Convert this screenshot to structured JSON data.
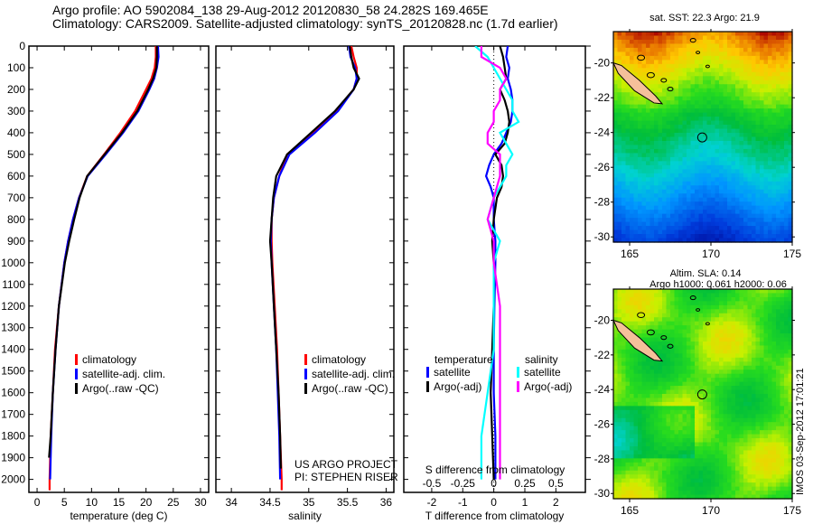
{
  "header": {
    "line1": "Argo profile: AO 5902084_138 29-Aug-2012 20120830_58 24.282S 169.465E",
    "line2": "Climatology: CARS2009. Satellite-adjusted climatology: synTS_20120828.nc (1.7d earlier)"
  },
  "colors": {
    "climatology": "#ff0000",
    "satellite": "#0000ff",
    "argo": "#000000",
    "s_satellite": "#00ffff",
    "s_argo": "#ff00ff",
    "land": "#f5c09a"
  },
  "chart_data": [
    {
      "type": "line",
      "name": "temperature-profile",
      "xlabel": "temperature (deg C)",
      "ylabel": "",
      "xlim": [
        -1.5,
        31.5
      ],
      "ylim": [
        2060,
        0
      ],
      "xticks": [
        "0",
        "5",
        "10",
        "15",
        "20",
        "25",
        "30"
      ],
      "yticks": [
        "0",
        "100",
        "200",
        "300",
        "400",
        "500",
        "600",
        "700",
        "800",
        "900",
        "1000",
        "1100",
        "1200",
        "1300",
        "1400",
        "1500",
        "1600",
        "1700",
        "1800",
        "1900",
        "2000"
      ],
      "legend": [
        "climatology",
        "satellite-adj. clim.",
        "Argo(..raw -QC)"
      ],
      "legend_position": "lower-middle",
      "series": [
        {
          "name": "climatology",
          "depth": [
            0,
            50,
            100,
            150,
            200,
            300,
            400,
            500,
            600,
            700,
            800,
            900,
            1000,
            1200,
            1400,
            1600,
            1800,
            2000,
            2050
          ],
          "values": [
            21.8,
            21.8,
            21.6,
            21.0,
            20.0,
            18.0,
            15.3,
            12.3,
            9.2,
            7.7,
            6.6,
            5.7,
            5.0,
            4.0,
            3.3,
            2.9,
            2.5,
            2.3,
            2.3
          ]
        },
        {
          "name": "satellite-adj. clim.",
          "depth": [
            0,
            50,
            100,
            150,
            200,
            300,
            400,
            500,
            600,
            700,
            800,
            900,
            1000,
            1200,
            1400,
            1600,
            1800,
            2000
          ],
          "values": [
            22.2,
            22.3,
            22.0,
            21.5,
            20.6,
            18.6,
            15.8,
            12.6,
            9.3,
            7.7,
            6.6,
            5.7,
            5.0,
            4.0,
            3.4,
            2.9,
            2.6,
            2.4
          ]
        },
        {
          "name": "Argo(..raw -QC)",
          "depth": [
            0,
            50,
            100,
            150,
            200,
            300,
            400,
            500,
            600,
            700,
            800,
            900,
            1000,
            1200,
            1400,
            1600,
            1800,
            1900
          ],
          "values": [
            22.0,
            22.0,
            21.9,
            21.3,
            20.4,
            18.4,
            15.6,
            12.4,
            9.2,
            7.8,
            6.8,
            5.9,
            5.1,
            4.0,
            3.4,
            2.9,
            2.5,
            2.2
          ]
        }
      ]
    },
    {
      "type": "line",
      "name": "salinity-profile",
      "xlabel": "salinity",
      "xlim": [
        33.8,
        36.1
      ],
      "ylim": [
        2060,
        0
      ],
      "xticks": [
        "34",
        "34.5",
        "35",
        "35.5",
        "36"
      ],
      "legend": [
        "climatology",
        "satellite-adj. clim.",
        "Argo(..raw -QC)"
      ],
      "legend_position": "lower-right",
      "annotation": [
        "US ARGO PROJECT",
        "PI: STEPHEN RISER"
      ],
      "series": [
        {
          "name": "climatology",
          "depth": [
            0,
            50,
            100,
            150,
            200,
            300,
            400,
            500,
            600,
            700,
            800,
            900,
            1000,
            1200,
            1400,
            1600,
            1800,
            2000,
            2050
          ],
          "values": [
            35.55,
            35.58,
            35.62,
            35.62,
            35.58,
            35.35,
            35.05,
            34.72,
            34.62,
            34.55,
            34.52,
            34.52,
            34.53,
            34.56,
            34.59,
            34.61,
            34.63,
            34.65,
            34.65
          ]
        },
        {
          "name": "satellite-adj. clim.",
          "depth": [
            0,
            50,
            100,
            150,
            200,
            300,
            400,
            500,
            600,
            700,
            800,
            900,
            1000,
            1200,
            1400,
            1600,
            1800,
            2000
          ],
          "values": [
            35.52,
            35.54,
            35.6,
            35.62,
            35.58,
            35.38,
            35.08,
            34.75,
            34.62,
            34.55,
            34.52,
            34.51,
            34.52,
            34.55,
            34.58,
            34.6,
            34.62,
            34.63
          ]
        },
        {
          "name": "Argo(..raw -QC)",
          "depth": [
            0,
            50,
            100,
            150,
            200,
            300,
            400,
            500,
            600,
            700,
            800,
            900,
            1000,
            1200,
            1400,
            1600,
            1800,
            1950
          ],
          "values": [
            35.53,
            35.55,
            35.58,
            35.65,
            35.58,
            35.34,
            35.03,
            34.72,
            34.58,
            34.54,
            34.52,
            34.5,
            34.52,
            34.55,
            34.58,
            34.61,
            34.63,
            34.64
          ]
        }
      ]
    },
    {
      "type": "line",
      "name": "difference-profile",
      "xlabel": "T difference from climatology",
      "x2label": "S difference from climatology",
      "xlim": [
        -2.9,
        2.95
      ],
      "ylim": [
        2060,
        0
      ],
      "xticks": [
        "-2",
        "-1",
        "0",
        "1",
        "2"
      ],
      "x2ticks": [
        "-0.5",
        "-0.25",
        "0",
        "0.25",
        "0.5"
      ],
      "legend_temperature": {
        "title": "temperature",
        "items": [
          "satellite",
          "Argo(-adj)"
        ]
      },
      "legend_salinity": {
        "title": "salinity",
        "items": [
          "satellite",
          "Argo(-adj)"
        ]
      },
      "series": [
        {
          "name": "T satellite",
          "depth": [
            0,
            50,
            100,
            150,
            200,
            250,
            300,
            350,
            400,
            450,
            500,
            550,
            600,
            650,
            700,
            800,
            900,
            1000,
            1200,
            1400,
            1600,
            1800,
            2000
          ],
          "values": [
            0.45,
            0.4,
            0.5,
            0.45,
            0.55,
            0.6,
            0.6,
            0.55,
            0.4,
            0.25,
            0.0,
            -0.15,
            -0.25,
            -0.1,
            0.0,
            0.0,
            0.05,
            0.05,
            0.02,
            0.0,
            0.0,
            0.05,
            0.05
          ]
        },
        {
          "name": "T Argo(-adj)",
          "depth": [
            0,
            50,
            100,
            150,
            200,
            250,
            300,
            350,
            400,
            450,
            500,
            550,
            600,
            650,
            700,
            800,
            900,
            1000,
            1200,
            1400,
            1600,
            1800,
            2000
          ],
          "values": [
            0.2,
            0.3,
            0.35,
            0.4,
            0.2,
            0.35,
            0.45,
            0.5,
            0.45,
            0.35,
            0.05,
            0.25,
            0.3,
            0.25,
            0.1,
            0.0,
            -0.05,
            0.0,
            0.0,
            -0.05,
            -0.1,
            -0.05,
            0.0
          ]
        },
        {
          "name": "S satellite",
          "depth": [
            0,
            50,
            100,
            150,
            200,
            250,
            300,
            350,
            400,
            450,
            500,
            550,
            600,
            700,
            800,
            900,
            1000,
            1200,
            1400,
            1600,
            1800,
            2000
          ],
          "values": [
            -0.15,
            -0.05,
            0.0,
            0.05,
            0.1,
            0.15,
            0.15,
            0.2,
            0.05,
            0.1,
            0.15,
            0.1,
            0.1,
            0.0,
            -0.05,
            0.05,
            0.0,
            0.0,
            0.0,
            -0.05,
            -0.1,
            -0.1
          ]
        },
        {
          "name": "S Argo(-adj)",
          "depth": [
            0,
            50,
            100,
            150,
            200,
            250,
            300,
            350,
            400,
            450,
            500,
            550,
            600,
            700,
            800,
            900,
            1000,
            1200,
            1400,
            1600,
            1800,
            2000
          ],
          "values": [
            -0.1,
            -0.1,
            0.05,
            0.1,
            0.05,
            0.05,
            0.0,
            0.0,
            -0.05,
            -0.05,
            0.05,
            0.05,
            0.05,
            0.0,
            -0.05,
            0.0,
            0.0,
            0.05,
            0.05,
            0.05,
            0.05,
            0.05
          ]
        }
      ],
      "zero_line": "dotted"
    },
    {
      "type": "heatmap",
      "name": "sst-map",
      "title": "sat. SST: 22.3 Argo: 21.9",
      "xlim": [
        164,
        175
      ],
      "ylim": [
        -30.3,
        -18.2
      ],
      "xticks": [
        "165",
        "170",
        "175"
      ],
      "yticks": [
        "-20",
        "-22",
        "-24",
        "-26",
        "-28",
        "-30"
      ],
      "argo_position": [
        169.465,
        -24.282
      ],
      "description": "warm (orange/red) in the north, grading through yellow and green to blue in the south"
    },
    {
      "type": "heatmap",
      "name": "sla-map",
      "title": "Altim. SLA: 0.14",
      "subtitle": "Argo h1000: 0.061 h2000: 0.06",
      "xlim": [
        164,
        175
      ],
      "ylim": [
        -30.3,
        -18.2
      ],
      "xticks": [
        "165",
        "170",
        "175"
      ],
      "yticks": [
        "-20",
        "-22",
        "-24",
        "-26",
        "-28",
        "-30"
      ],
      "argo_position": [
        169.465,
        -24.282
      ],
      "description": "mostly green and yellow with cyan patches in the southwest"
    }
  ],
  "footer": {
    "stamp": "IMOS 03-Sep-2012 17:01:21"
  }
}
